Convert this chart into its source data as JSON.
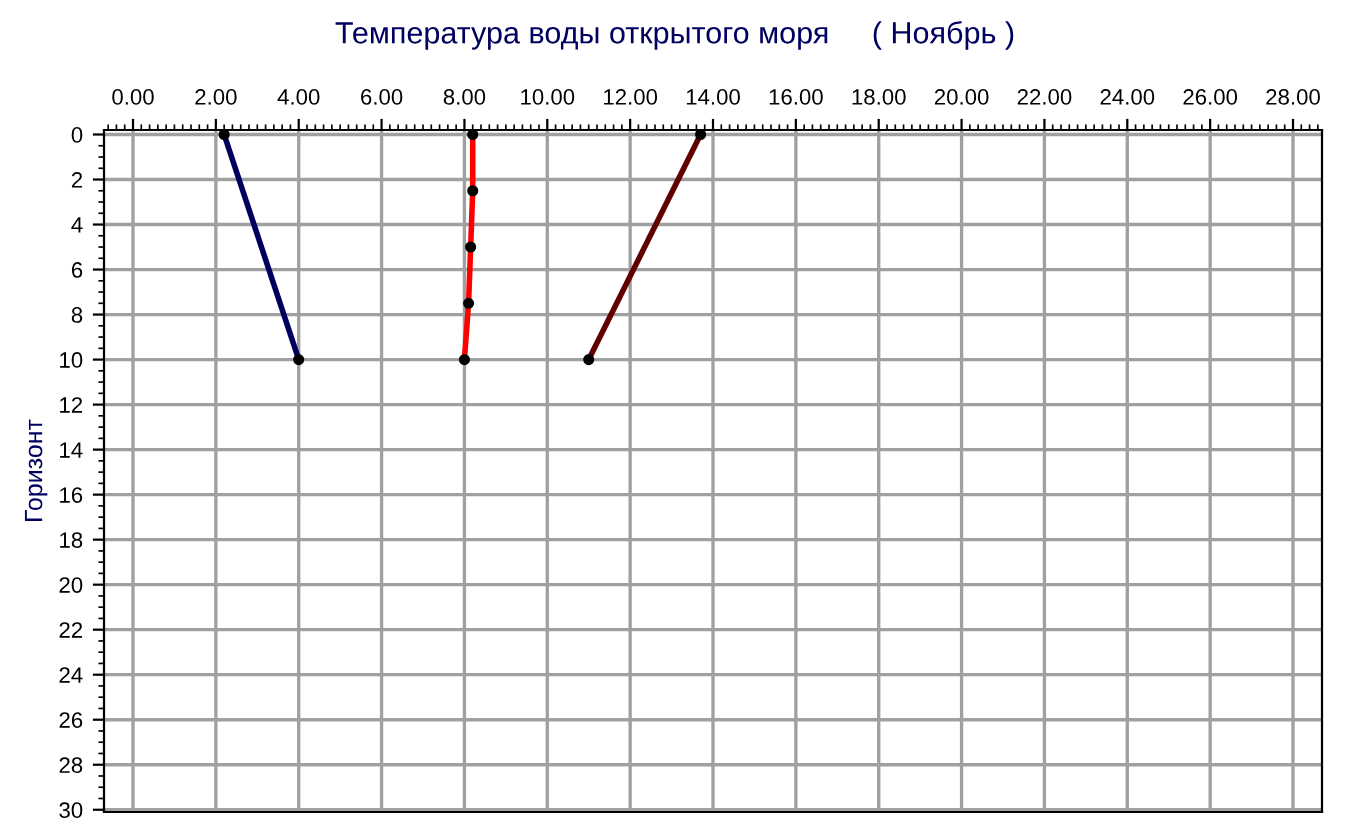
{
  "chart_data": {
    "type": "line",
    "title": "Температура воды открытого моря     ( Ноябрь )",
    "ylabel": "Горизонт",
    "series": [
      {
        "color": "#000060",
        "x": [
          2.2,
          4.0
        ],
        "values": [
          0,
          10
        ]
      },
      {
        "color": "#ff0000",
        "x": [
          8.2,
          8.2,
          8.15,
          8.1,
          8.0
        ],
        "values": [
          0,
          2.5,
          5,
          7.5,
          10
        ]
      },
      {
        "color": "#600000",
        "x": [
          13.7,
          11.0
        ],
        "values": [
          0,
          10
        ]
      }
    ],
    "xlim": [
      -0.7,
      28.7
    ],
    "ylim": [
      30.1,
      -0.2
    ],
    "xticks": [
      {
        "value": 0,
        "label": "0.00"
      },
      {
        "value": 2,
        "label": "2.00"
      },
      {
        "value": 4,
        "label": "4.00"
      },
      {
        "value": 6,
        "label": "6.00"
      },
      {
        "value": 8,
        "label": "8.00"
      },
      {
        "value": 10,
        "label": "10.00"
      },
      {
        "value": 12,
        "label": "12.00"
      },
      {
        "value": 14,
        "label": "14.00"
      },
      {
        "value": 16,
        "label": "16.00"
      },
      {
        "value": 18,
        "label": "18.00"
      },
      {
        "value": 20,
        "label": "20.00"
      },
      {
        "value": 22,
        "label": "22.00"
      },
      {
        "value": 24,
        "label": "24.00"
      },
      {
        "value": 26,
        "label": "26.00"
      },
      {
        "value": 28,
        "label": "28.00"
      }
    ],
    "yticks": [
      0,
      2,
      4,
      6,
      8,
      10,
      12,
      14,
      16,
      18,
      20,
      22,
      24,
      26,
      28,
      30
    ],
    "grid": true,
    "marker": "circle",
    "line_style": "solid"
  }
}
